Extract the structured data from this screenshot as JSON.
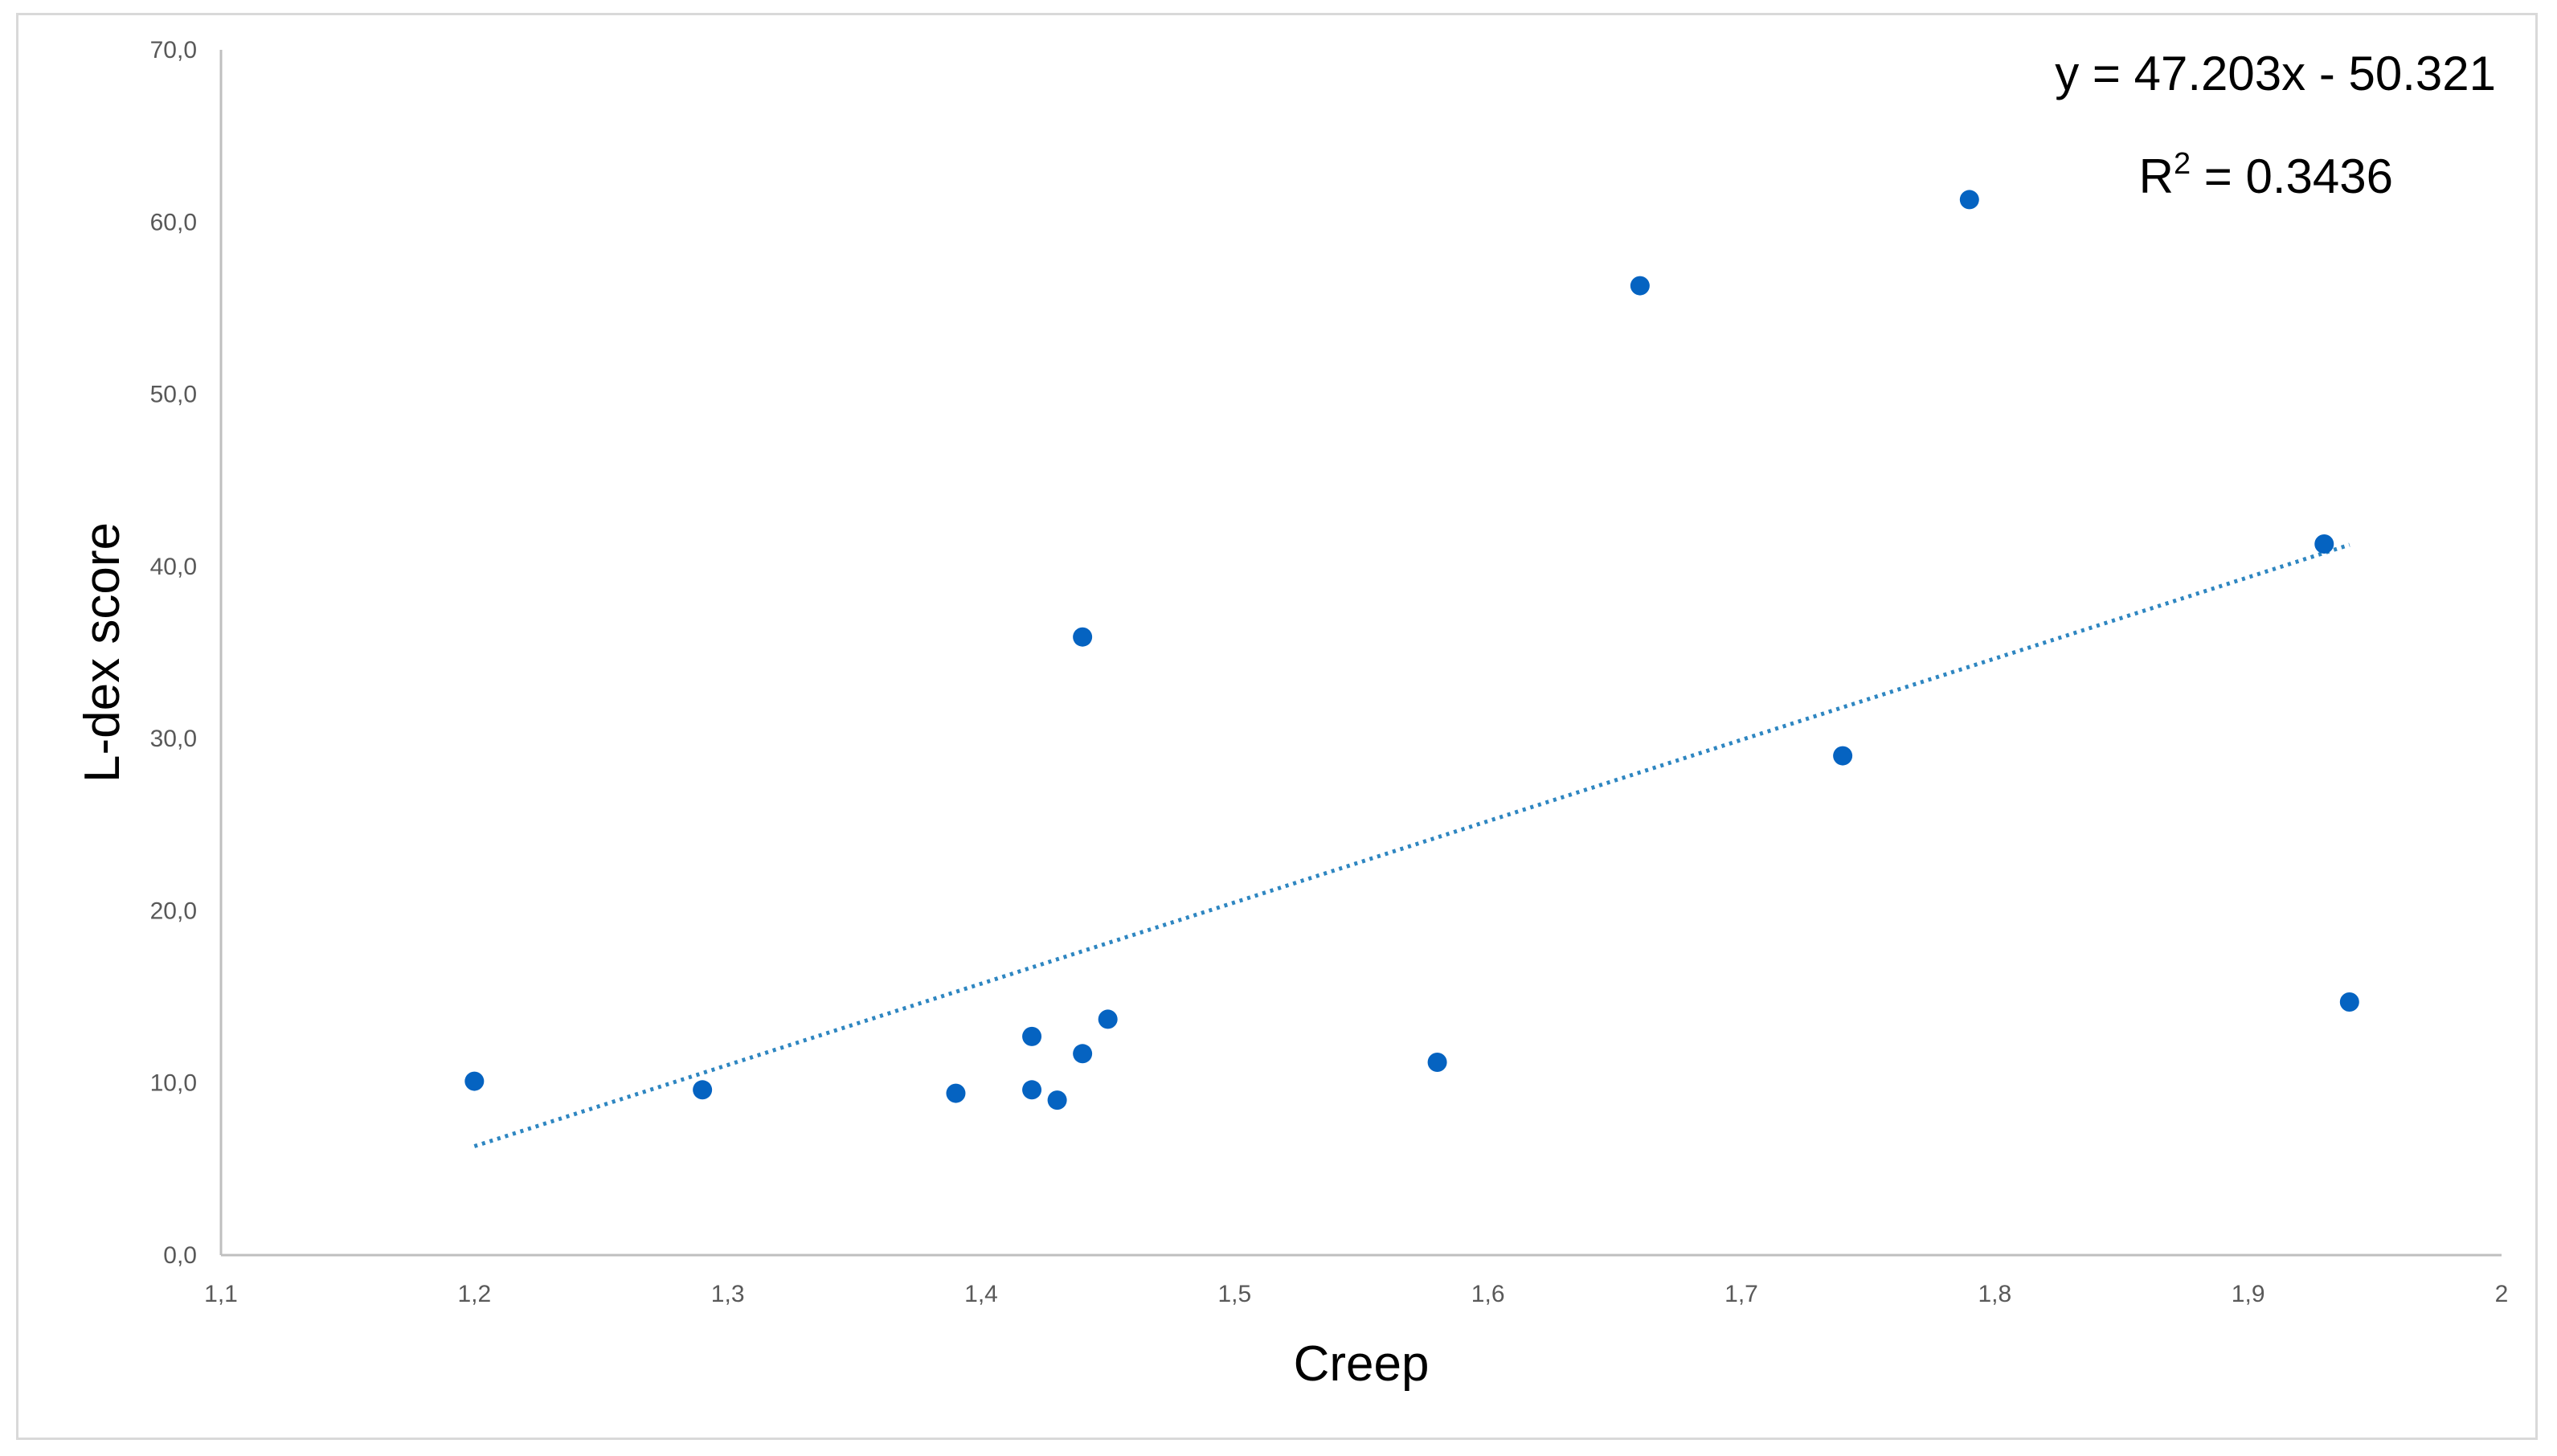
{
  "chart_data": {
    "type": "scatter",
    "title": "",
    "xlabel": "Creep",
    "ylabel": "L-dex score",
    "xlim": [
      1.1,
      2.0
    ],
    "ylim": [
      0,
      70
    ],
    "x_ticks": [
      "1,1",
      "1,2",
      "1,3",
      "1,4",
      "1,5",
      "1,6",
      "1,7",
      "1,8",
      "1,9",
      "2"
    ],
    "y_ticks": [
      "0,0",
      "10,0",
      "20,0",
      "30,0",
      "40,0",
      "50,0",
      "60,0",
      "70,0"
    ],
    "grid": false,
    "legend": "none",
    "marker_color": "#0563C1",
    "trendline_color": "#2E86C1",
    "points": [
      {
        "x": 1.2,
        "y": 10.1
      },
      {
        "x": 1.29,
        "y": 9.6
      },
      {
        "x": 1.39,
        "y": 9.4
      },
      {
        "x": 1.42,
        "y": 12.7
      },
      {
        "x": 1.42,
        "y": 9.6
      },
      {
        "x": 1.43,
        "y": 9.0
      },
      {
        "x": 1.44,
        "y": 35.9
      },
      {
        "x": 1.44,
        "y": 11.7
      },
      {
        "x": 1.45,
        "y": 13.7
      },
      {
        "x": 1.58,
        "y": 11.2
      },
      {
        "x": 1.66,
        "y": 56.3
      },
      {
        "x": 1.74,
        "y": 29.0
      },
      {
        "x": 1.79,
        "y": 61.3
      },
      {
        "x": 1.93,
        "y": 41.3
      },
      {
        "x": 1.94,
        "y": 14.7
      }
    ],
    "trendline": {
      "type": "linear",
      "slope": 47.203,
      "intercept": -50.321,
      "x_range": [
        1.2,
        1.94
      ],
      "equation": "y = 47.203x - 50.321",
      "r2_prefix": "R",
      "r2_exponent": "2",
      "r2_value": " = 0.3436"
    }
  }
}
